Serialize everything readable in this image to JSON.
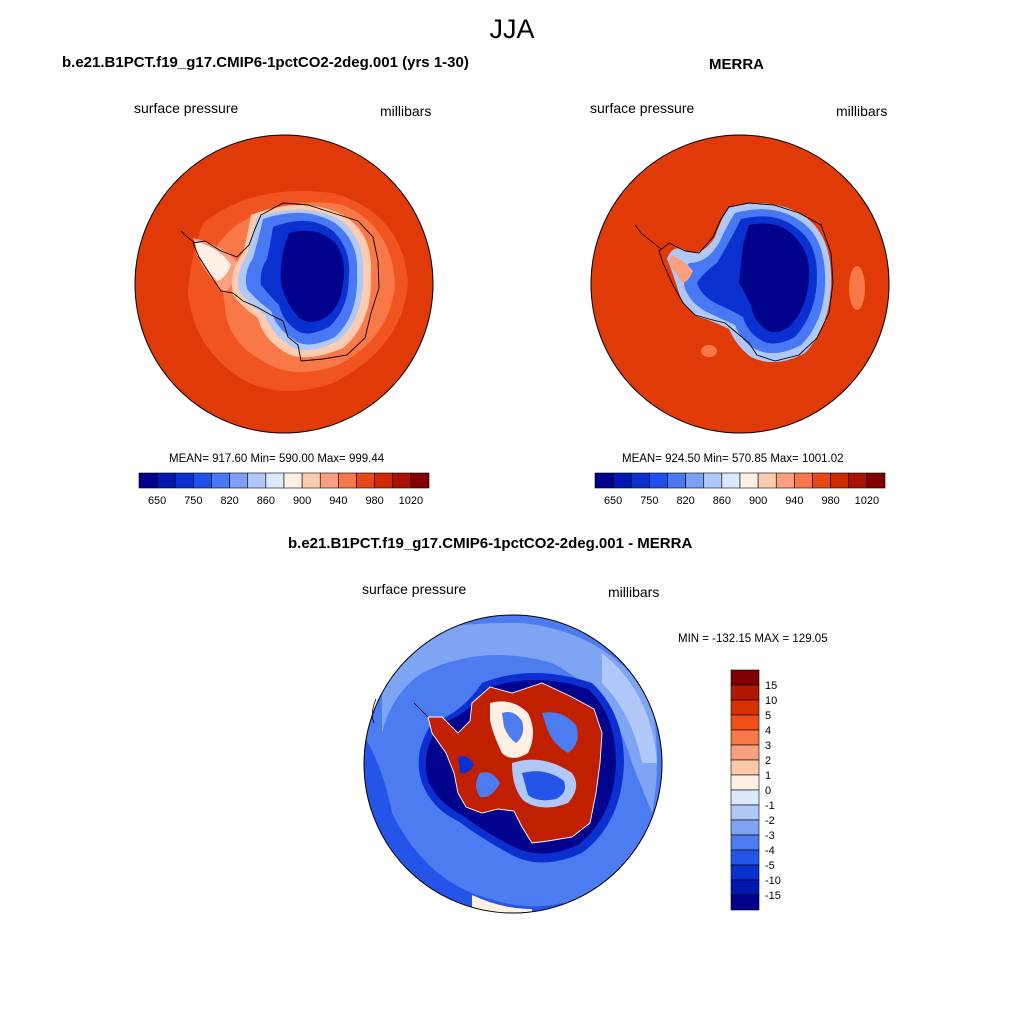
{
  "figure": {
    "title": "JJA"
  },
  "panels": [
    {
      "title": "b.e21.B1PCT.f19_g17.CMIP6-1pctCO2-2deg.001 (yrs 1-30)",
      "left_label": "surface pressure",
      "right_label": "millibars",
      "stats": "MEAN= 917.60  Min= 590.00  Max= 999.44"
    },
    {
      "title": "MERRA",
      "left_label": "surface pressure",
      "right_label": "millibars",
      "stats": "MEAN= 924.50  Min= 570.85  Max= 1001.02"
    },
    {
      "title": "b.e21.B1PCT.f19_g17.CMIP6-1pctCO2-2deg.001 - MERRA",
      "left_label": "surface pressure",
      "right_label": "millibars",
      "stats": "MIN = -132.15 MAX = 129.05"
    }
  ],
  "colorbars": {
    "absolute": {
      "levels": [
        600,
        650,
        700,
        750,
        800,
        820,
        840,
        860,
        880,
        900,
        920,
        940,
        960,
        980,
        1000,
        1020
      ],
      "tick_labels": [
        "650",
        "750",
        "820",
        "860",
        "900",
        "940",
        "980",
        "1020"
      ],
      "colors": [
        "#00008c",
        "#0018b0",
        "#0a30d0",
        "#2050ec",
        "#4878f4",
        "#7ca0f4",
        "#b0c8f8",
        "#dce8fc",
        "#fff0e6",
        "#fcccb0",
        "#f8a080",
        "#f87848",
        "#e84818",
        "#d02800",
        "#a81400",
        "#800000"
      ]
    },
    "difference": {
      "levels": [
        -15,
        -10,
        -5,
        -4,
        -3,
        -2,
        -1,
        0,
        1,
        2,
        3,
        4,
        5,
        10,
        15
      ],
      "tick_labels": [
        "15",
        "10",
        "5",
        "4",
        "3",
        "2",
        "1",
        "0",
        "-1",
        "-2",
        "-3",
        "-4",
        "-5",
        "-10",
        "-15"
      ],
      "colors": [
        "#800000",
        "#b01800",
        "#d83000",
        "#f05018",
        "#f87848",
        "#f8a080",
        "#fcc8a8",
        "#fff0e6",
        "#dce8fc",
        "#b0c8f8",
        "#80a4f4",
        "#4c7cf0",
        "#2454e8",
        "#0c30d0",
        "#0018b0",
        "#00008c"
      ]
    }
  },
  "map": {
    "projection": "south polar stereographic",
    "colors": {
      "ocean_high": "#e03a08",
      "ocean_mid": "#f05420",
      "ice_low": "#00048c",
      "diff_blue": "#2454e8",
      "diff_red": "#c02000"
    }
  }
}
